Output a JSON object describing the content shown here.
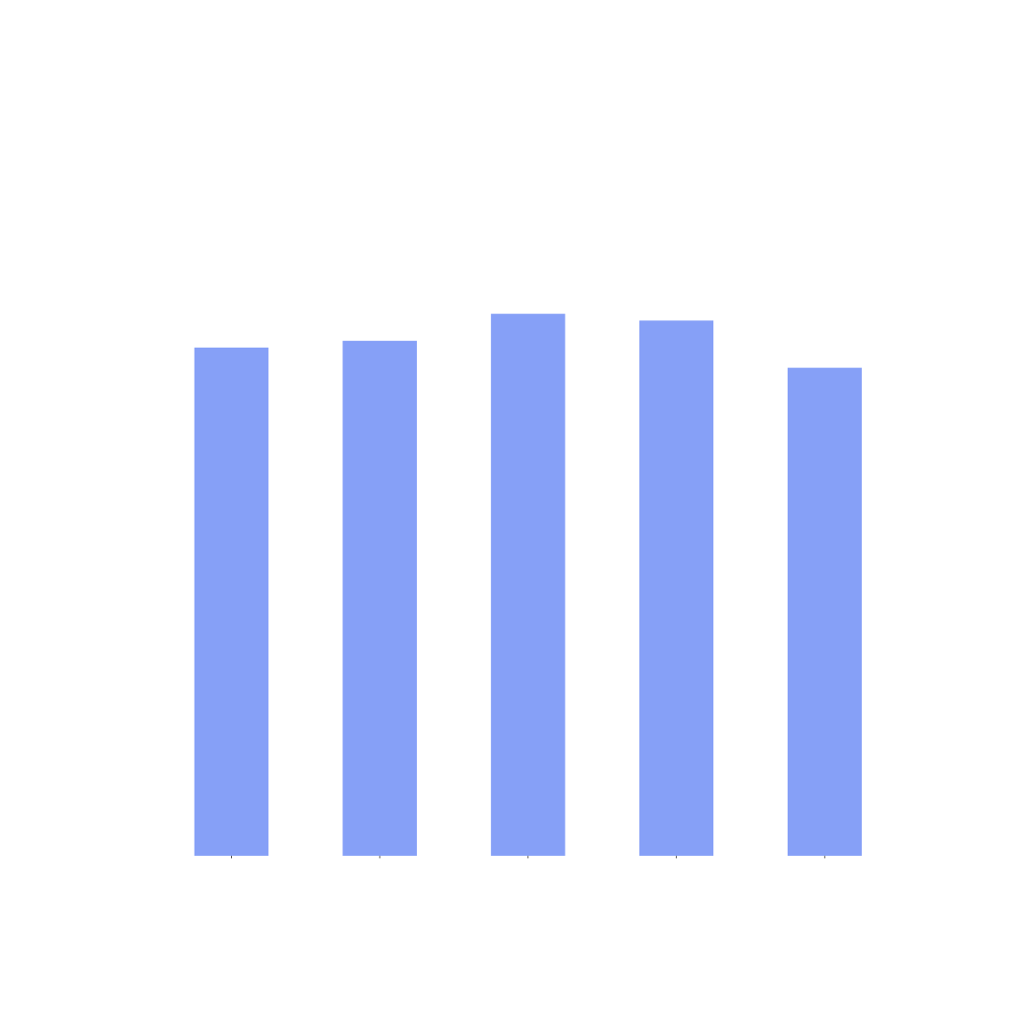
{
  "chart_data": {
    "type": "bar",
    "categories": [
      null,
      null,
      null,
      null,
      null
    ],
    "values": [
      6.78,
      6.87,
      7.23,
      7.14,
      6.51
    ],
    "color": "#86a0f7",
    "ylim": [
      0,
      10
    ]
  }
}
